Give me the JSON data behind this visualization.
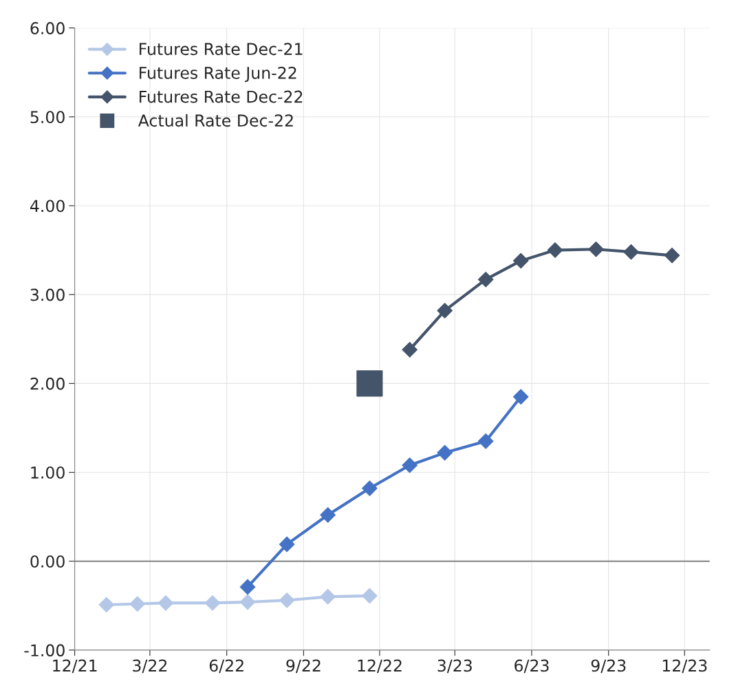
{
  "chart_data": {
    "type": "line",
    "series": [
      {
        "name": "Futures Rate Dec-21",
        "color": "#b4c7e7",
        "marker": "diamond",
        "x": [
          "2022-01-08",
          "2022-02-14",
          "2022-03-20",
          "2022-05-15",
          "2022-06-26",
          "2022-08-12",
          "2022-09-30",
          "2022-11-19"
        ],
        "values": [
          -0.49,
          -0.48,
          -0.47,
          -0.47,
          -0.46,
          -0.44,
          -0.4,
          -0.39
        ]
      },
      {
        "name": "Futures Rate Jun-22",
        "color": "#4472c4",
        "marker": "diamond",
        "x": [
          "2022-06-26",
          "2022-08-12",
          "2022-09-30",
          "2022-11-19",
          "2023-01-06",
          "2023-02-17",
          "2023-04-07",
          "2023-05-19"
        ],
        "values": [
          -0.29,
          0.19,
          0.52,
          0.82,
          1.08,
          1.22,
          1.35,
          1.85
        ]
      },
      {
        "name": "Futures Rate Dec-22",
        "color": "#44546a",
        "marker": "diamond",
        "x": [
          "2023-01-06",
          "2023-02-17",
          "2023-04-07",
          "2023-05-19",
          "2023-06-29",
          "2023-08-17",
          "2023-09-28",
          "2023-11-16"
        ],
        "values": [
          2.38,
          2.82,
          3.17,
          3.38,
          3.5,
          3.51,
          3.48,
          3.44
        ]
      },
      {
        "name": "Actual Rate Dec-22",
        "type": "scatter",
        "color": "#44546a",
        "marker": "square",
        "x": [
          "2022-11-19"
        ],
        "values": [
          2.0
        ]
      }
    ],
    "xlim": [
      "2021-12-01",
      "2023-12-31"
    ],
    "xticks": [
      {
        "value": "2021-12-01",
        "label": "12/21"
      },
      {
        "value": "2022-03-01",
        "label": "3/22"
      },
      {
        "value": "2022-06-01",
        "label": "6/22"
      },
      {
        "value": "2022-09-01",
        "label": "9/22"
      },
      {
        "value": "2022-12-01",
        "label": "12/22"
      },
      {
        "value": "2023-03-01",
        "label": "3/23"
      },
      {
        "value": "2023-06-01",
        "label": "6/23"
      },
      {
        "value": "2023-09-01",
        "label": "9/23"
      },
      {
        "value": "2023-12-01",
        "label": "12/23"
      }
    ],
    "ylim": [
      -1.0,
      6.0
    ],
    "yticks": [
      {
        "value": -1,
        "label": "-1.00"
      },
      {
        "value": 0,
        "label": "0.00"
      },
      {
        "value": 1,
        "label": "1.00"
      },
      {
        "value": 2,
        "label": "2.00"
      },
      {
        "value": 3,
        "label": "3.00"
      },
      {
        "value": 4,
        "label": "4.00"
      },
      {
        "value": 5,
        "label": "5.00"
      },
      {
        "value": 6,
        "label": "6.00"
      }
    ],
    "ref_lines": [
      {
        "axis": "y",
        "value": 0,
        "color": "#808080"
      }
    ],
    "grid": true,
    "legend": "top left",
    "line_style": "solid"
  }
}
